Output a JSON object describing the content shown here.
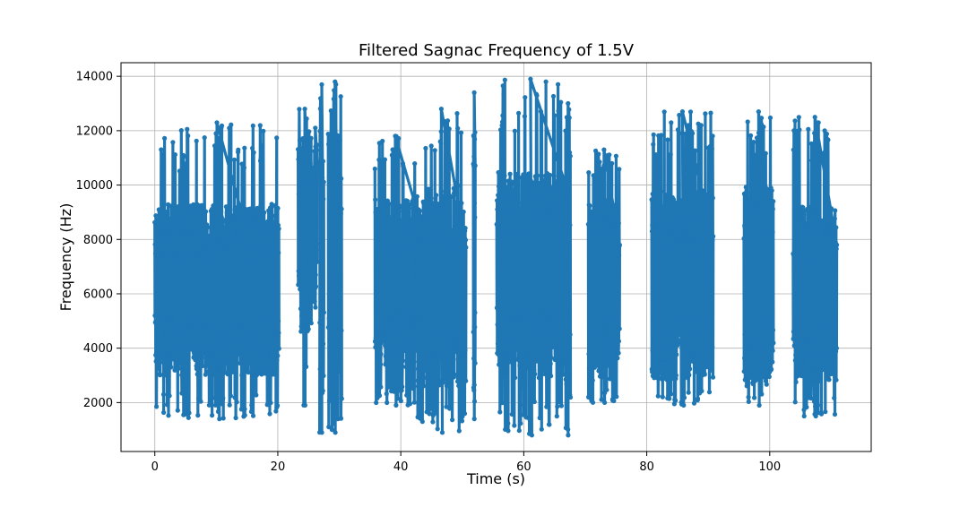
{
  "chart_data": {
    "type": "scatter",
    "title": "Filtered Sagnac Frequency of 1.5V",
    "xlabel": "Time (s)",
    "ylabel": "Frequency (Hz)",
    "xlim": [
      -5.5,
      116.5
    ],
    "ylim": [
      200,
      14500
    ],
    "xticks": [
      0,
      20,
      40,
      60,
      80,
      100
    ],
    "yticks": [
      2000,
      4000,
      6000,
      8000,
      10000,
      12000,
      14000
    ],
    "xtick_labels": [
      "0",
      "20",
      "40",
      "60",
      "80",
      "100"
    ],
    "ytick_labels": [
      "2000",
      "4000",
      "6000",
      "8000",
      "10000",
      "12000",
      "14000"
    ],
    "grid": true,
    "series": [
      {
        "color": "#1f77b4",
        "marker": "circle-with-line",
        "segments": [
          {
            "x_start": 0,
            "x_end": 20.2,
            "y_min": 1400,
            "y_max": 12300,
            "core_min": 3000,
            "core_max": 9300
          },
          {
            "x_start": 23.3,
            "x_end": 25.5,
            "y_min": 1900,
            "y_max": 12800,
            "core_min": 4600,
            "core_max": 12000
          },
          {
            "x_start": 25.8,
            "x_end": 26.4,
            "y_min": 5500,
            "y_max": 12100,
            "core_min": 6000,
            "core_max": 11500
          },
          {
            "x_start": 26.8,
            "x_end": 27.5,
            "y_min": 900,
            "y_max": 13700,
            "core_min": 2000,
            "core_max": 12000
          },
          {
            "x_start": 28.2,
            "x_end": 30.4,
            "y_min": 900,
            "y_max": 13800,
            "core_min": 2000,
            "core_max": 12000
          },
          {
            "x_start": 35.8,
            "x_end": 42.4,
            "y_min": 1900,
            "y_max": 11800,
            "core_min": 3200,
            "core_max": 9500
          },
          {
            "x_start": 42.6,
            "x_end": 50.6,
            "y_min": 900,
            "y_max": 12800,
            "core_min": 2600,
            "core_max": 10000
          },
          {
            "x_start": 51.8,
            "x_end": 52.1,
            "y_min": 1400,
            "y_max": 13400,
            "core_min": 2000,
            "core_max": 12000
          },
          {
            "x_start": 55.6,
            "x_end": 66.6,
            "y_min": 800,
            "y_max": 13900,
            "core_min": 2900,
            "core_max": 10500
          },
          {
            "x_start": 66.8,
            "x_end": 67.6,
            "y_min": 800,
            "y_max": 13000,
            "core_min": 1500,
            "core_max": 12000
          },
          {
            "x_start": 70.5,
            "x_end": 75.6,
            "y_min": 2000,
            "y_max": 11300,
            "core_min": 2800,
            "core_max": 9500
          },
          {
            "x_start": 80.8,
            "x_end": 90.8,
            "y_min": 1900,
            "y_max": 12700,
            "core_min": 2800,
            "core_max": 9800
          },
          {
            "x_start": 95.8,
            "x_end": 100.6,
            "y_min": 1900,
            "y_max": 12700,
            "core_min": 2600,
            "core_max": 10000
          },
          {
            "x_start": 103.8,
            "x_end": 110.9,
            "y_min": 1500,
            "y_max": 12500,
            "core_min": 2700,
            "core_max": 9300
          }
        ]
      }
    ]
  }
}
